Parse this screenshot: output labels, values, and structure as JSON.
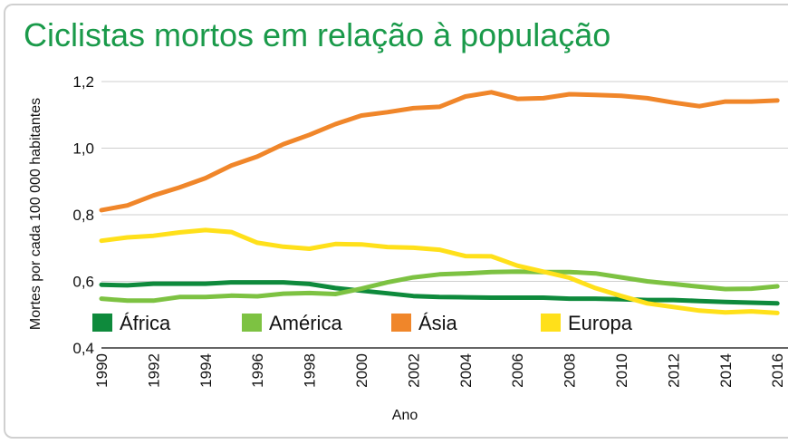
{
  "title": "Ciclistas mortos em relação à população",
  "chart_data": {
    "type": "line",
    "title": "Ciclistas mortos em relação à população",
    "xlabel": "Ano",
    "ylabel": "Mortes por cada 100 000 habitantes",
    "ylim": [
      0.4,
      1.2
    ],
    "xlim": [
      1990,
      2016
    ],
    "y_ticks": [
      "0,4",
      "0,6",
      "0,8",
      "1,0",
      "1,2"
    ],
    "x_ticks": [
      "1990",
      "1992",
      "1994",
      "1996",
      "1998",
      "2000",
      "2002",
      "2004",
      "2006",
      "2008",
      "2010",
      "2012",
      "2014",
      "2016"
    ],
    "grid": true,
    "legend_position": "bottom-inside",
    "x": [
      1990,
      1991,
      1992,
      1993,
      1994,
      1995,
      1996,
      1997,
      1998,
      1999,
      2000,
      2001,
      2002,
      2003,
      2004,
      2005,
      2006,
      2007,
      2008,
      2009,
      2010,
      2011,
      2012,
      2013,
      2014,
      2015,
      2016
    ],
    "series": [
      {
        "name": "África",
        "color": "#0e8a3c",
        "values": [
          0.59,
          0.588,
          0.593,
          0.593,
          0.593,
          0.597,
          0.597,
          0.597,
          0.592,
          0.58,
          0.572,
          0.564,
          0.556,
          0.553,
          0.552,
          0.551,
          0.551,
          0.551,
          0.548,
          0.548,
          0.546,
          0.544,
          0.544,
          0.541,
          0.538,
          0.536,
          0.534
        ]
      },
      {
        "name": "América",
        "color": "#7dc242",
        "values": [
          0.548,
          0.542,
          0.542,
          0.553,
          0.553,
          0.557,
          0.555,
          0.563,
          0.565,
          0.562,
          0.578,
          0.597,
          0.612,
          0.621,
          0.624,
          0.628,
          0.629,
          0.628,
          0.628,
          0.624,
          0.612,
          0.6,
          0.592,
          0.584,
          0.577,
          0.578,
          0.585
        ]
      },
      {
        "name": "Ásia",
        "color": "#f0862a",
        "values": [
          0.814,
          0.828,
          0.858,
          0.882,
          0.91,
          0.948,
          0.975,
          1.012,
          1.04,
          1.072,
          1.098,
          1.108,
          1.12,
          1.124,
          1.155,
          1.168,
          1.148,
          1.15,
          1.162,
          1.16,
          1.157,
          1.15,
          1.137,
          1.126,
          1.14,
          1.14,
          1.143
        ]
      },
      {
        "name": "Europa",
        "color": "#ffe01a",
        "values": [
          0.722,
          0.732,
          0.737,
          0.747,
          0.754,
          0.748,
          0.716,
          0.704,
          0.698,
          0.712,
          0.711,
          0.703,
          0.701,
          0.695,
          0.676,
          0.675,
          0.647,
          0.629,
          0.611,
          0.58,
          0.556,
          0.534,
          0.523,
          0.512,
          0.507,
          0.51,
          0.505
        ]
      }
    ]
  }
}
